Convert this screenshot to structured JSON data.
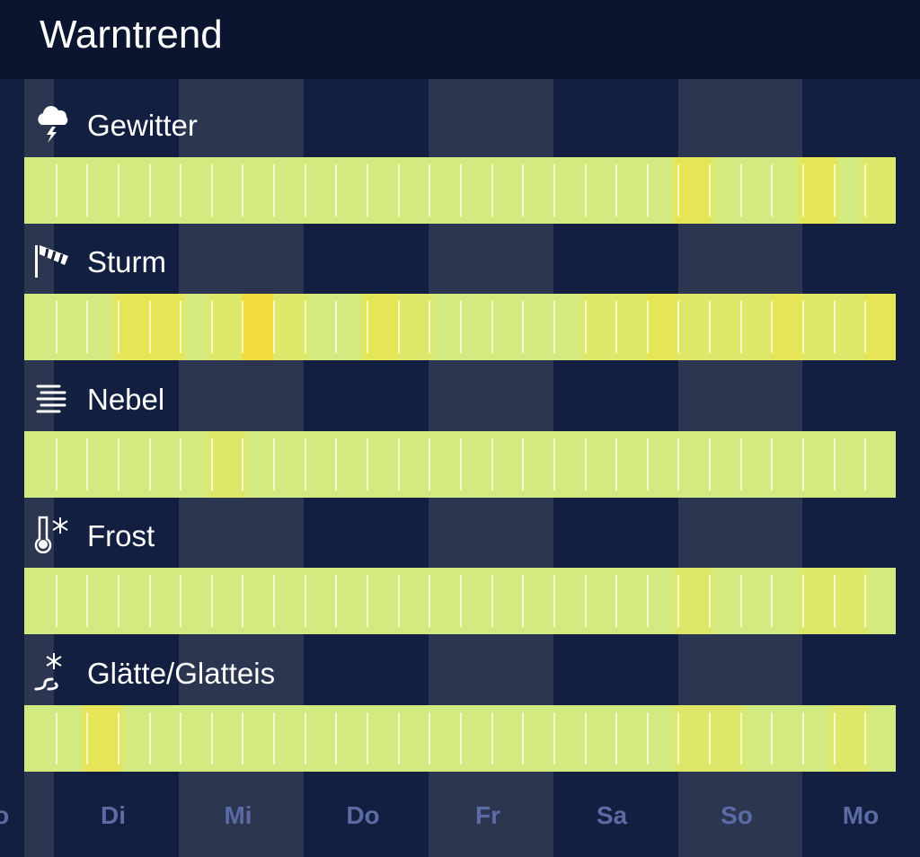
{
  "header": {
    "title": "Warntrend"
  },
  "colors": {
    "level0": "#d3ea80",
    "level1": "#dde86a",
    "level2": "#e6e558",
    "level3": "#f2dc3c",
    "dark_col": "#131f40",
    "light_col": "#2c3651",
    "day_label": "#5b6ba3"
  },
  "days": [
    "Mo",
    "Di",
    "Mi",
    "Do",
    "Fr",
    "Sa",
    "So",
    "Mo"
  ],
  "rows": [
    {
      "label": "Gewitter",
      "icon": "thunderstorm-icon",
      "levels": [
        0,
        0,
        0,
        0,
        0,
        0,
        0,
        0,
        0,
        0,
        0,
        0,
        0,
        0,
        0,
        0,
        0,
        0,
        0,
        0,
        0,
        2,
        0,
        0,
        0,
        2,
        0,
        1
      ]
    },
    {
      "label": "Sturm",
      "icon": "windsock-icon",
      "levels": [
        0,
        0,
        0,
        2,
        2,
        0,
        1,
        3,
        1,
        0,
        0,
        2,
        1,
        0,
        0,
        0,
        0,
        0,
        1,
        1,
        2,
        1,
        1,
        1,
        2,
        1,
        1,
        2
      ]
    },
    {
      "label": "Nebel",
      "icon": "fog-icon",
      "levels": [
        0,
        0,
        0,
        0,
        0,
        0,
        1,
        0,
        0,
        0,
        0,
        0,
        0,
        0,
        0,
        0,
        0,
        0,
        0,
        0,
        0,
        0,
        0,
        0,
        0,
        0,
        0,
        0
      ]
    },
    {
      "label": "Frost",
      "icon": "thermometer-snowflake-icon",
      "levels": [
        0,
        0,
        0,
        0,
        0,
        0,
        0,
        0,
        0,
        0,
        0,
        0,
        0,
        0,
        0,
        0,
        0,
        0,
        0,
        0,
        0,
        1,
        0,
        0,
        0,
        1,
        1,
        0
      ]
    },
    {
      "label": "Glätte/Glatteis",
      "icon": "snowflake-road-icon",
      "levels": [
        0,
        0,
        2,
        0,
        0,
        0,
        0,
        0,
        0,
        0,
        0,
        0,
        0,
        0,
        0,
        0,
        0,
        0,
        0,
        0,
        0,
        1,
        1,
        0,
        0,
        0,
        1,
        0
      ]
    }
  ]
}
